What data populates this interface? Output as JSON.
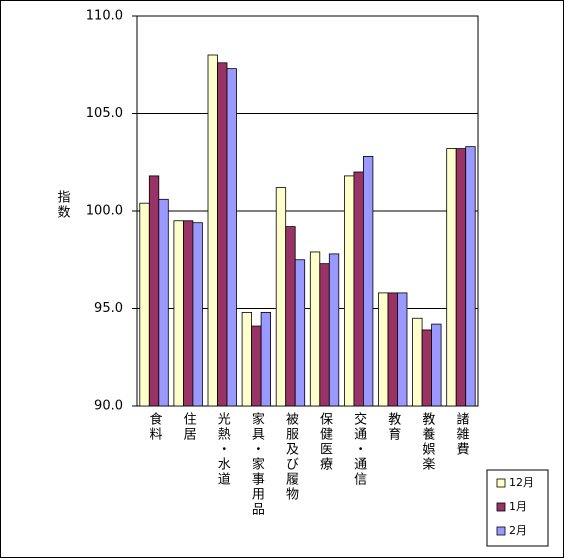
{
  "chart_data": {
    "type": "bar",
    "y_label": "指数",
    "categories": [
      "食料",
      "住居",
      "光熱・水道",
      "家具・家事用品",
      "被服及び履物",
      "保健医療",
      "交通・通信",
      "教育",
      "教養娯楽",
      "諸雑費"
    ],
    "series": [
      {
        "name": "12月",
        "color": "#ffffcc",
        "values": [
          100.4,
          99.5,
          108.0,
          94.8,
          101.2,
          97.9,
          101.8,
          95.8,
          94.5,
          103.2
        ]
      },
      {
        "name": "1月",
        "color": "#993366",
        "values": [
          101.8,
          99.5,
          107.6,
          94.1,
          99.2,
          97.3,
          102.0,
          95.8,
          93.9,
          103.2
        ]
      },
      {
        "name": "2月",
        "color": "#9999ff",
        "values": [
          100.6,
          99.4,
          107.3,
          94.8,
          97.5,
          97.8,
          102.8,
          95.8,
          94.2,
          103.3
        ]
      }
    ],
    "ylim": [
      90,
      110
    ],
    "yticks": [
      {
        "value": 90,
        "label": "90.0"
      },
      {
        "value": 95,
        "label": "95.0"
      },
      {
        "value": 100,
        "label": "100.0"
      },
      {
        "value": 105,
        "label": "105.0"
      },
      {
        "value": 110,
        "label": "110.0"
      }
    ],
    "grid": true
  }
}
